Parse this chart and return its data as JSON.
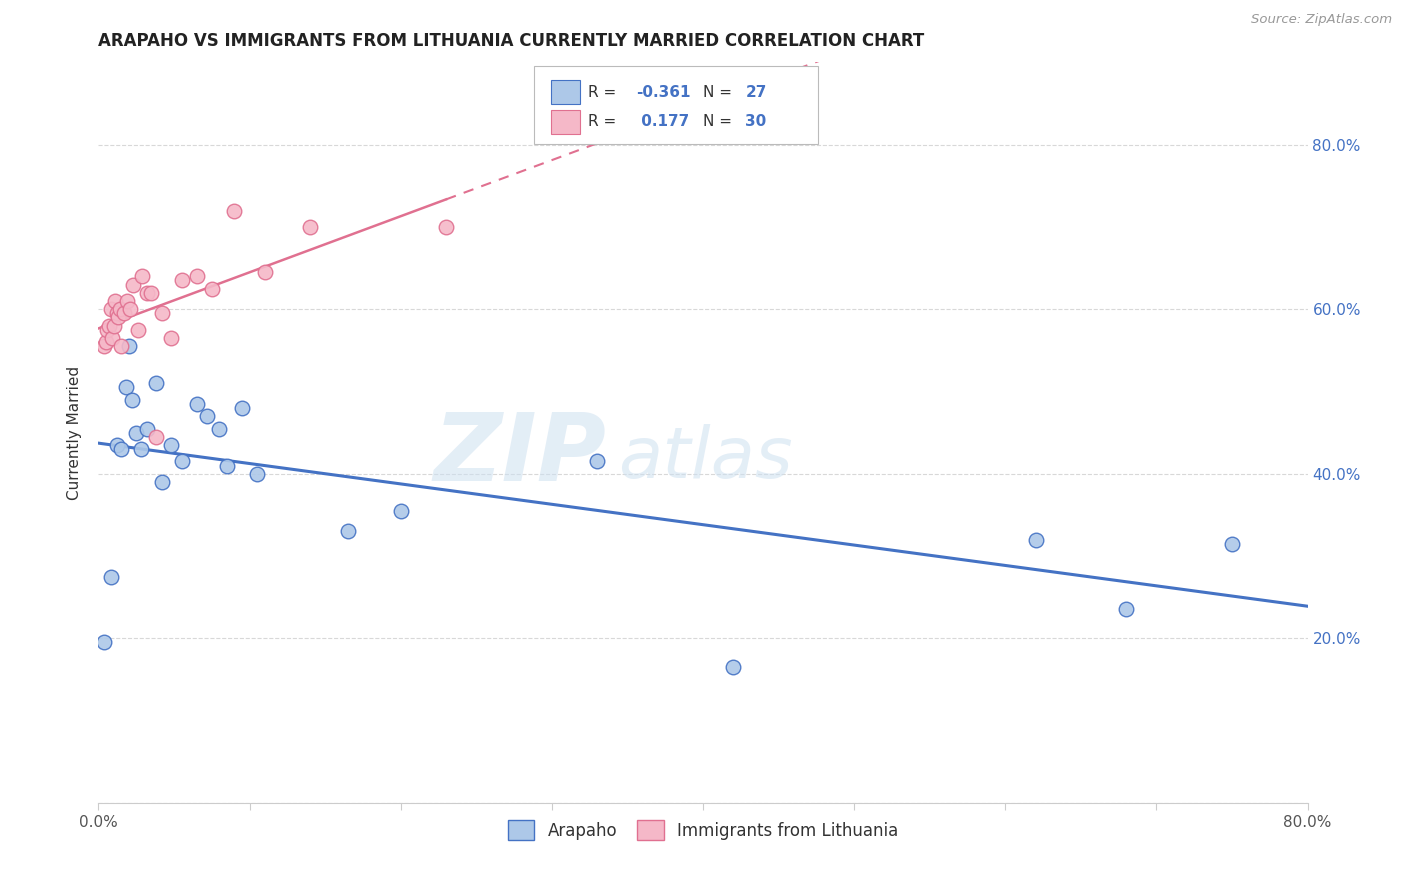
{
  "title": "ARAPAHO VS IMMIGRANTS FROM LITHUANIA CURRENTLY MARRIED CORRELATION CHART",
  "source": "Source: ZipAtlas.com",
  "ylabel": "Currently Married",
  "xlim": [
    0.0,
    0.8
  ],
  "ylim": [
    0.0,
    0.9
  ],
  "legend_labels": [
    "Arapaho",
    "Immigrants from Lithuania"
  ],
  "R_arapaho": -0.361,
  "N_arapaho": 27,
  "R_lithuania": 0.177,
  "N_lithuania": 30,
  "color_arapaho": "#adc8e8",
  "color_lithuania": "#f5b8c8",
  "line_color_arapaho": "#4472c4",
  "line_color_lithuania": "#e07090",
  "arapaho_x": [
    0.004,
    0.008,
    0.012,
    0.015,
    0.018,
    0.02,
    0.022,
    0.025,
    0.028,
    0.032,
    0.038,
    0.042,
    0.048,
    0.055,
    0.065,
    0.072,
    0.08,
    0.085,
    0.095,
    0.105,
    0.165,
    0.2,
    0.33,
    0.42,
    0.62,
    0.68,
    0.75
  ],
  "arapaho_y": [
    0.195,
    0.275,
    0.435,
    0.43,
    0.505,
    0.555,
    0.49,
    0.45,
    0.43,
    0.455,
    0.51,
    0.39,
    0.435,
    0.415,
    0.485,
    0.47,
    0.455,
    0.41,
    0.48,
    0.4,
    0.33,
    0.355,
    0.415,
    0.165,
    0.32,
    0.235,
    0.315
  ],
  "lithuania_x": [
    0.004,
    0.005,
    0.006,
    0.007,
    0.008,
    0.009,
    0.01,
    0.011,
    0.012,
    0.013,
    0.014,
    0.015,
    0.017,
    0.019,
    0.021,
    0.023,
    0.026,
    0.029,
    0.032,
    0.035,
    0.038,
    0.042,
    0.048,
    0.055,
    0.065,
    0.075,
    0.09,
    0.11,
    0.14,
    0.23
  ],
  "lithuania_y": [
    0.555,
    0.56,
    0.575,
    0.58,
    0.6,
    0.565,
    0.58,
    0.61,
    0.595,
    0.59,
    0.6,
    0.555,
    0.595,
    0.61,
    0.6,
    0.63,
    0.575,
    0.64,
    0.62,
    0.62,
    0.445,
    0.595,
    0.565,
    0.635,
    0.64,
    0.625,
    0.72,
    0.645,
    0.7,
    0.7
  ],
  "watermark_zip": "ZIP",
  "watermark_atlas": "atlas",
  "background_color": "#ffffff",
  "grid_color": "#d8d8d8"
}
